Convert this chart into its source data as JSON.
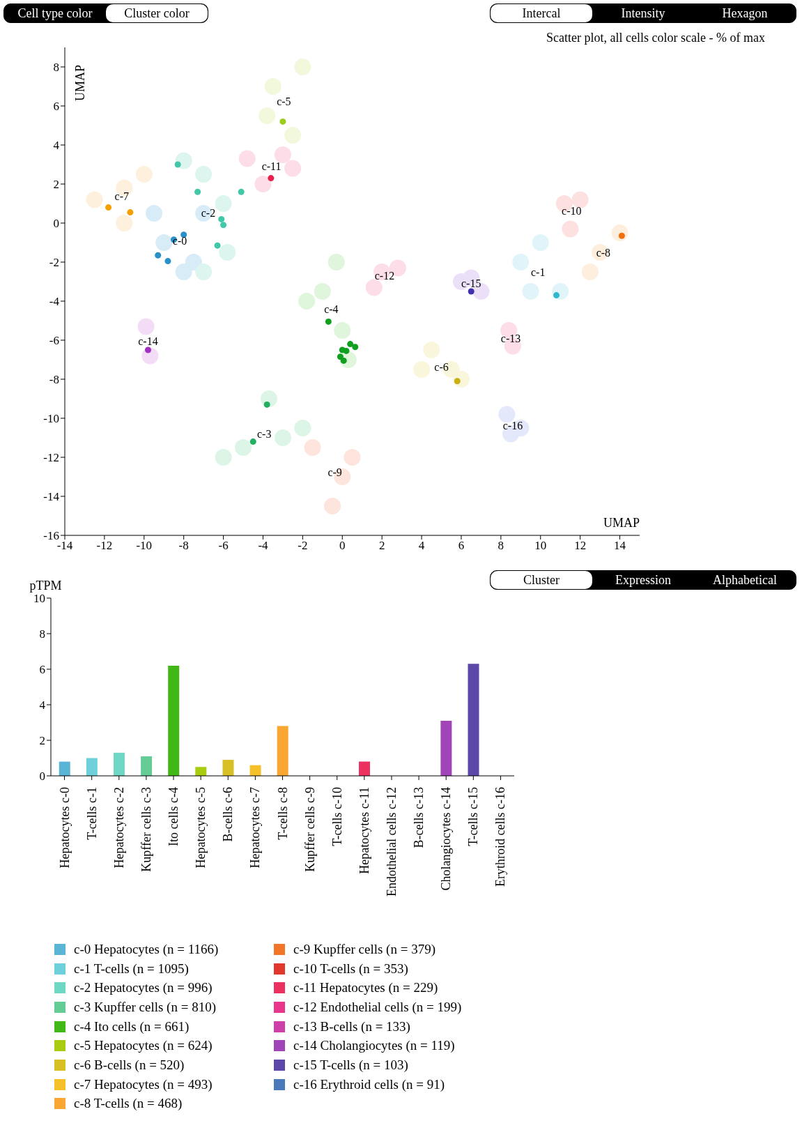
{
  "chart_data": [
    {
      "type": "scatter",
      "subtitle": "Scatter plot, all cells color scale - % of max",
      "xlabel": "UMAP",
      "ylabel": "UMAP",
      "xlim": [
        -14,
        15
      ],
      "ylim": [
        -16,
        9
      ],
      "xticks": [
        -14,
        -12,
        -10,
        -8,
        -6,
        -4,
        -2,
        0,
        2,
        4,
        6,
        8,
        10,
        12,
        14
      ],
      "yticks": [
        -16,
        -14,
        -12,
        -10,
        -8,
        -6,
        -4,
        -2,
        0,
        2,
        4,
        6,
        8
      ],
      "marker": "circle",
      "grid": false,
      "annotations": [
        "Cell type color",
        "Cluster color",
        "Intercal",
        "Intensity",
        "Hexagon"
      ],
      "series": [
        {
          "name": "c-0",
          "color": "#d8ecf8",
          "x": [
            -9,
            -8,
            -7,
            -9.5,
            -7.5
          ],
          "values": [
            -1,
            -2.5,
            0.5,
            0.5,
            -2
          ]
        },
        {
          "name": "c-7",
          "color": "#fdf0dc",
          "x": [
            -12.5,
            -11,
            -11,
            -10
          ],
          "values": [
            1.2,
            1.8,
            0,
            2.5
          ]
        },
        {
          "name": "c-2",
          "color": "#ddf5ef",
          "x": [
            -7,
            -6,
            -5.8,
            -7,
            -8
          ],
          "values": [
            2.5,
            1,
            -1.5,
            -2.5,
            3.2
          ]
        },
        {
          "name": "c-5",
          "color": "#f2f8dc",
          "x": [
            -3.5,
            -2,
            -3.8,
            -2.5
          ],
          "values": [
            7,
            8,
            5.5,
            4.5
          ]
        },
        {
          "name": "c-11",
          "color": "#fcdde8",
          "x": [
            -4,
            -3,
            -4.8,
            -2.5
          ],
          "values": [
            2,
            3.5,
            3.3,
            2.8
          ]
        },
        {
          "name": "c-12",
          "color": "#fcdde8",
          "x": [
            2,
            2.8,
            1.6
          ],
          "values": [
            -2.5,
            -2.3,
            -3.3
          ]
        },
        {
          "name": "c-4",
          "color": "#dff5dc",
          "x": [
            -1,
            -0.3,
            0,
            0.3,
            -1.8
          ],
          "values": [
            -3.5,
            -2,
            -5.5,
            -7,
            -4
          ]
        },
        {
          "name": "c-10",
          "color": "#fde0e0",
          "x": [
            11.2,
            12,
            11.5
          ],
          "values": [
            1,
            1.2,
            -0.3
          ]
        },
        {
          "name": "c-8",
          "color": "#fdeedd",
          "x": [
            13,
            14,
            12.5
          ],
          "values": [
            -1.5,
            -0.5,
            -2.5
          ]
        },
        {
          "name": "c-1",
          "color": "#e0f4fa",
          "x": [
            9,
            10,
            11,
            9.5
          ],
          "values": [
            -2,
            -1,
            -3.5,
            -3.5
          ]
        },
        {
          "name": "c-15",
          "color": "#ebe0f8",
          "x": [
            6,
            7,
            6.5
          ],
          "values": [
            -3,
            -3.5,
            -2.8
          ]
        },
        {
          "name": "c-13",
          "color": "#fcdde8",
          "x": [
            8.4,
            8.6
          ],
          "values": [
            -5.5,
            -6.3
          ]
        },
        {
          "name": "c-6",
          "color": "#faf6dc",
          "x": [
            4.5,
            4,
            5.5,
            6
          ],
          "values": [
            -6.5,
            -7.5,
            -7.5,
            -8
          ]
        },
        {
          "name": "c-14",
          "color": "#f3dcf5",
          "x": [
            -9.9,
            -9.7
          ],
          "values": [
            -5.3,
            -6.8
          ]
        },
        {
          "name": "c-16",
          "color": "#e3e8fa",
          "x": [
            8.3,
            8.5,
            9
          ],
          "values": [
            -9.8,
            -10.8,
            -10.5
          ]
        },
        {
          "name": "c-3",
          "color": "#ddf5e6",
          "x": [
            -3.7,
            -5,
            -3,
            -2,
            -6
          ],
          "values": [
            -9,
            -11.5,
            -11,
            -10.5,
            -12
          ]
        },
        {
          "name": "c-9",
          "color": "#fde4dc",
          "x": [
            -1.5,
            0,
            -0.5,
            0.5
          ],
          "values": [
            -11.5,
            -13,
            -14.5,
            -12
          ]
        },
        {
          "x": [
            -3,
            -3.6,
            -8.3,
            -7.3,
            -5.1,
            -6.1,
            -6.0,
            -6.3,
            -8.5,
            -8.0,
            -9.3,
            -8.8,
            -11.8,
            -10.7,
            -0.7,
            0.0,
            0.2,
            0.4,
            0.65,
            -0.1,
            0.07,
            -3.8,
            -4.5,
            6.5,
            10.8,
            14.1,
            5.8,
            -9.8
          ],
          "values": [
            5.2,
            2.3,
            3.0,
            1.6,
            1.6,
            0.2,
            -0.1,
            -1.15,
            -0.85,
            -0.6,
            -1.65,
            -1.95,
            0.8,
            0.55,
            -5.05,
            -6.5,
            -6.55,
            -6.2,
            -6.35,
            -6.85,
            -7.05,
            -9.3,
            -11.2,
            -3.5,
            -3.7,
            -0.65,
            -8.1,
            -6.5
          ],
          "colors": [
            "#9acd1e",
            "#e8204a",
            "#40c8a8",
            "#40c8a8",
            "#40c8a8",
            "#40c8a8",
            "#40c8a8",
            "#40c8a8",
            "#2a90c8",
            "#2a90c8",
            "#2a90c8",
            "#2a90c8",
            "#f5a000",
            "#f5a000",
            "#10a020",
            "#10a020",
            "#10a020",
            "#10a020",
            "#10a020",
            "#10a020",
            "#10a020",
            "#20b060",
            "#20b060",
            "#4030b0",
            "#30b8d0",
            "#f07010",
            "#c8b010",
            "#a030c0"
          ]
        }
      ]
    },
    {
      "type": "bar",
      "ylabel": "pTPM",
      "ylim": [
        0,
        10
      ],
      "yticks": [
        0,
        2,
        4,
        6,
        8,
        10
      ],
      "stacked": true,
      "grid": false,
      "legend": "bottom",
      "annotations": [
        "Cluster",
        "Expression",
        "Alphabetical"
      ],
      "categories": [
        "Hepatocytes c-0",
        "T-cells c-1",
        "Hepatocytes c-2",
        "Kupffer cells c-3",
        "Ito cells c-4",
        "Hepatocytes c-5",
        "B-cells c-6",
        "Hepatocytes c-7",
        "T-cells c-8",
        "Kupffer cells c-9",
        "T-cells c-10",
        "Hepatocytes c-11",
        "Endothelial cells c-12",
        "B-cells c-13",
        "Cholangiocytes c-14",
        "T-cells c-15",
        "Erythroid cells c-16"
      ],
      "series": [
        {
          "name": "c-0 Hepatocytes (n = 1166)",
          "color": "#5ab4d6",
          "values": [
            0.8,
            null,
            null,
            null,
            null,
            null,
            null,
            null,
            null,
            null,
            null,
            null,
            null,
            null,
            null,
            null,
            null
          ]
        },
        {
          "name": "c-1 T-cells (n = 1095)",
          "color": "#6ed0da",
          "values": [
            null,
            1.0,
            null,
            null,
            null,
            null,
            null,
            null,
            null,
            null,
            null,
            null,
            null,
            null,
            null,
            null,
            null
          ]
        },
        {
          "name": "c-2 Hepatocytes (n = 996)",
          "color": "#6fd8c4",
          "values": [
            null,
            null,
            1.3,
            null,
            null,
            null,
            null,
            null,
            null,
            null,
            null,
            null,
            null,
            null,
            null,
            null,
            null
          ]
        },
        {
          "name": "c-3 Kupffer cells (n = 810)",
          "color": "#64cc94",
          "values": [
            null,
            null,
            null,
            1.1,
            null,
            null,
            null,
            null,
            null,
            null,
            null,
            null,
            null,
            null,
            null,
            null,
            null
          ]
        },
        {
          "name": "c-4 Ito cells (n = 661)",
          "color": "#42b816",
          "values": [
            null,
            null,
            null,
            null,
            6.2,
            null,
            null,
            null,
            null,
            null,
            null,
            null,
            null,
            null,
            null,
            null,
            null
          ]
        },
        {
          "name": "c-5 Hepatocytes (n = 624)",
          "color": "#a8cc10",
          "values": [
            null,
            null,
            null,
            null,
            null,
            0.5,
            null,
            null,
            null,
            null,
            null,
            null,
            null,
            null,
            null,
            null,
            null
          ]
        },
        {
          "name": "c-6 B-cells (n = 520)",
          "color": "#d8c024",
          "values": [
            null,
            null,
            null,
            null,
            null,
            null,
            0.9,
            null,
            null,
            null,
            null,
            null,
            null,
            null,
            null,
            null,
            null
          ]
        },
        {
          "name": "c-7 Hepatocytes (n = 493)",
          "color": "#f6c02a",
          "values": [
            null,
            null,
            null,
            null,
            null,
            null,
            null,
            0.6,
            null,
            null,
            null,
            null,
            null,
            null,
            null,
            null,
            null
          ]
        },
        {
          "name": "c-8 T-cells (n = 468)",
          "color": "#f9a632",
          "values": [
            null,
            null,
            null,
            null,
            null,
            null,
            null,
            null,
            2.8,
            null,
            null,
            null,
            null,
            null,
            null,
            null,
            null
          ]
        },
        {
          "name": "c-9 Kupffer cells (n = 379)",
          "color": "#f2762a",
          "values": [
            null,
            null,
            null,
            null,
            null,
            null,
            null,
            null,
            null,
            0,
            null,
            null,
            null,
            null,
            null,
            null,
            null
          ]
        },
        {
          "name": "c-10 T-cells (n = 353)",
          "color": "#e0382c",
          "values": [
            null,
            null,
            null,
            null,
            null,
            null,
            null,
            null,
            null,
            null,
            0,
            null,
            null,
            null,
            null,
            null,
            null
          ]
        },
        {
          "name": "c-11 Hepatocytes (n = 229)",
          "color": "#ec3060",
          "values": [
            null,
            null,
            null,
            null,
            null,
            null,
            null,
            null,
            null,
            null,
            null,
            0.8,
            null,
            null,
            null,
            null,
            null
          ]
        },
        {
          "name": "c-12 Endothelial cells (n = 199)",
          "color": "#e8368a",
          "values": [
            null,
            null,
            null,
            null,
            null,
            null,
            null,
            null,
            null,
            null,
            null,
            null,
            0,
            null,
            null,
            null,
            null
          ]
        },
        {
          "name": "c-13 B-cells (n = 133)",
          "color": "#cc40a8",
          "values": [
            null,
            null,
            null,
            null,
            null,
            null,
            null,
            null,
            null,
            null,
            null,
            null,
            null,
            0,
            null,
            null,
            null
          ]
        },
        {
          "name": "c-14 Cholangiocytes (n = 119)",
          "color": "#a044b8",
          "values": [
            null,
            null,
            null,
            null,
            null,
            null,
            null,
            null,
            null,
            null,
            null,
            null,
            null,
            null,
            3.1,
            null,
            null
          ]
        },
        {
          "name": "c-15 T-cells (n = 103)",
          "color": "#5c48a8",
          "values": [
            null,
            null,
            null,
            null,
            null,
            null,
            null,
            null,
            null,
            null,
            null,
            null,
            null,
            null,
            null,
            6.3,
            null
          ]
        },
        {
          "name": "c-16 Erythroid cells (n = 91)",
          "color": "#4a7abc",
          "values": [
            null,
            null,
            null,
            null,
            null,
            null,
            null,
            null,
            null,
            null,
            null,
            null,
            null,
            null,
            null,
            null,
            0
          ]
        }
      ]
    }
  ]
}
